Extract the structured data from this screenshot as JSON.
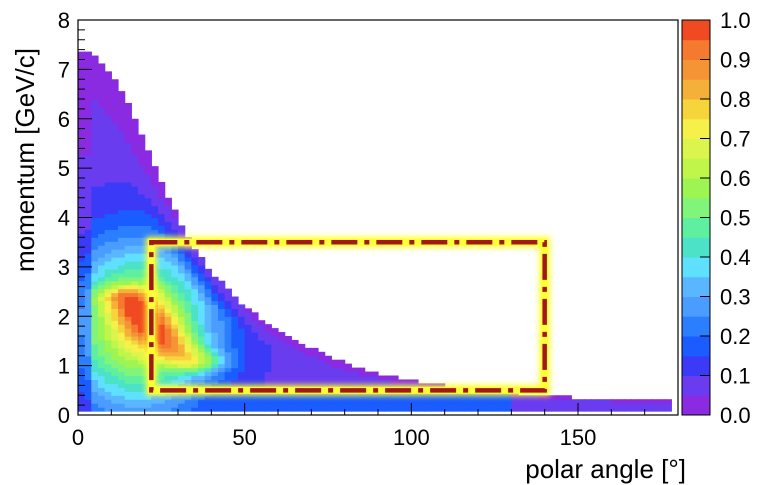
{
  "chart_data": {
    "type": "heatmap",
    "xlabel": "polar angle [°]",
    "ylabel": "momentum [GeV/c]",
    "xlim": [
      0,
      180
    ],
    "ylim": [
      0,
      8
    ],
    "x_ticks": [
      "0",
      "50",
      "100",
      "150"
    ],
    "y_ticks": [
      "0",
      "1",
      "2",
      "3",
      "4",
      "5",
      "6",
      "7",
      "8"
    ],
    "colorbar": {
      "range": [
        0.0,
        1.0
      ],
      "tick_labels": [
        "0.0",
        "0.1",
        "0.2",
        "0.3",
        "0.4",
        "0.5",
        "0.6",
        "0.7",
        "0.8",
        "0.9",
        "1.0"
      ],
      "colors": [
        "#8a2be2",
        "#6a3cf0",
        "#3b3bf7",
        "#1a5cff",
        "#2b7fff",
        "#4a9cff",
        "#5ab6ff",
        "#5fe0ff",
        "#4be2c8",
        "#5ef0a0",
        "#80f57a",
        "#9cf553",
        "#c0f54a",
        "#dcf54d",
        "#f5f04a",
        "#f5d43c",
        "#f5b03a",
        "#f59435",
        "#f57a30",
        "#f04a22"
      ]
    },
    "grid": false,
    "distribution": {
      "description_of_encoding": "value z(theta, p); nonzero region bounded by p_max(theta)",
      "boundary": [
        [
          1,
          7.4
        ],
        [
          5,
          7.3
        ],
        [
          10,
          6.9
        ],
        [
          15,
          6.3
        ],
        [
          20,
          5.5
        ],
        [
          25,
          4.7
        ],
        [
          30,
          4.0
        ],
        [
          35,
          3.4
        ],
        [
          40,
          2.9
        ],
        [
          50,
          2.2
        ],
        [
          60,
          1.7
        ],
        [
          70,
          1.35
        ],
        [
          80,
          1.05
        ],
        [
          90,
          0.85
        ],
        [
          100,
          0.7
        ],
        [
          110,
          0.6
        ],
        [
          120,
          0.5
        ],
        [
          130,
          0.45
        ],
        [
          140,
          0.4
        ],
        [
          150,
          0.35
        ],
        [
          160,
          0.32
        ],
        [
          170,
          0.3
        ],
        [
          178,
          0.3
        ]
      ],
      "hotspot_ridge": [
        [
          15,
          2.4
        ],
        [
          20,
          2.0
        ],
        [
          25,
          1.6
        ],
        [
          30,
          1.3
        ],
        [
          35,
          1.1
        ]
      ]
    },
    "selection_box": {
      "theta_range": [
        22,
        140
      ],
      "momentum_range": [
        0.5,
        3.5
      ],
      "line_color": "#a01818",
      "glow_color": "#ffff33",
      "style": "dash-dot"
    }
  }
}
